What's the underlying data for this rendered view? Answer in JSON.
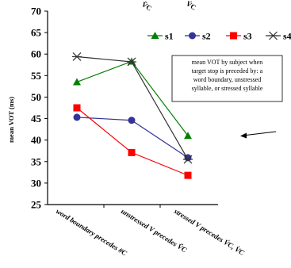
{
  "chart_data": {
    "type": "line",
    "title": "",
    "ylabel": "mean VOT (ms)",
    "xlabel": "",
    "ylim": [
      25,
      70
    ],
    "yticks": [
      25,
      30,
      35,
      40,
      45,
      50,
      55,
      60,
      65,
      70
    ],
    "categories": [
      "word boundary precedes #C",
      "unstressed V precedes V̆C",
      "stressed V precedes V́C, V̀C"
    ],
    "series": [
      {
        "name": "s1",
        "color": "#008000",
        "marker": "triangle",
        "values": [
          53.5,
          58.3,
          41.0
        ]
      },
      {
        "name": "s2",
        "color": "#333399",
        "marker": "circle",
        "values": [
          45.3,
          44.6,
          35.9
        ]
      },
      {
        "name": "s3",
        "color": "#ff0000",
        "marker": "square",
        "values": [
          47.5,
          37.1,
          31.8
        ]
      },
      {
        "name": "s4",
        "color": "#333333",
        "marker": "star",
        "values": [
          59.4,
          58.2,
          35.5
        ]
      }
    ],
    "legend_position": "top-right",
    "grid": false,
    "annotation": {
      "lines": [
        "mean VOT by subject when",
        "target stop is preceded by:  a",
        "word boundary, unstressed",
        "syllable, or stressed syllable"
      ]
    },
    "top_fragments": [
      "V̆C",
      "V́C"
    ]
  }
}
